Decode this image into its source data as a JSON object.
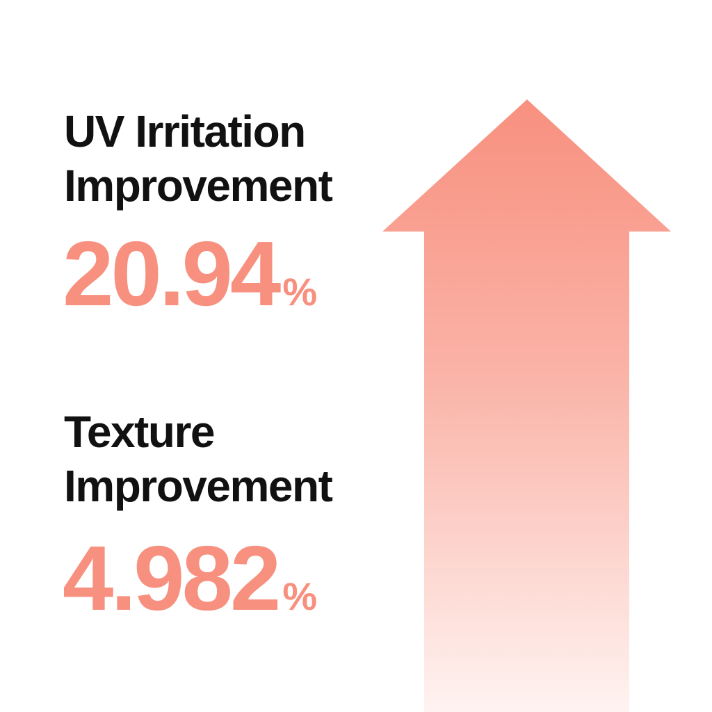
{
  "colors": {
    "accent": "#f8907f",
    "text": "#111111"
  },
  "stats": [
    {
      "label_line1": "UV Irritation",
      "label_line2": "Improvement",
      "value": "20.94",
      "unit": "%"
    },
    {
      "label_line1": "Texture",
      "label_line2": "Improvement",
      "value": "4.982",
      "unit": "%"
    }
  ],
  "arrow_icon": "up-arrow-icon"
}
